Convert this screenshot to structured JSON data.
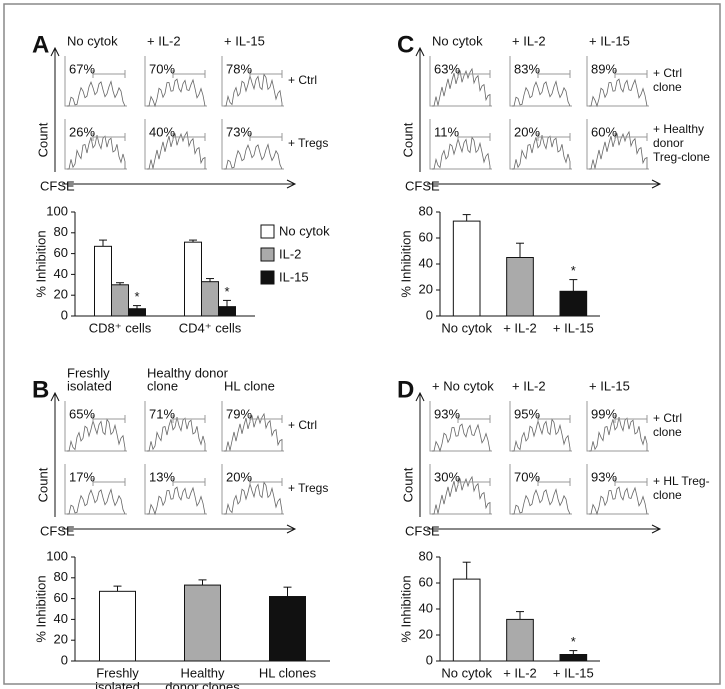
{
  "panels": [
    {
      "letter": "A",
      "columns": [
        [
          "No cytok"
        ],
        [
          "+ IL-2"
        ],
        [
          "+ IL-15"
        ]
      ],
      "rows": [
        {
          "label": [
            "+ Ctrl"
          ],
          "percents": [
            "67%",
            "70%",
            "78%"
          ]
        },
        {
          "label": [
            "+ Tregs"
          ],
          "percents": [
            "26%",
            "40%",
            "73%"
          ]
        }
      ],
      "y_label": "Count",
      "x_label": "CFSE"
    },
    {
      "letter": "B",
      "columns": [
        [
          "Freshly",
          "isolated"
        ],
        [
          "Healthy donor",
          "clone"
        ],
        [
          "HL clone"
        ]
      ],
      "rows": [
        {
          "label": [
            "+ Ctrl"
          ],
          "percents": [
            "65%",
            "71%",
            "79%"
          ]
        },
        {
          "label": [
            "+ Tregs"
          ],
          "percents": [
            "17%",
            "13%",
            "20%"
          ]
        }
      ],
      "y_label": "Count",
      "x_label": "CFSE"
    },
    {
      "letter": "C",
      "columns": [
        [
          "No cytok"
        ],
        [
          "+ IL-2"
        ],
        [
          "+ IL-15"
        ]
      ],
      "rows": [
        {
          "label": [
            "+ Ctrl",
            "clone"
          ],
          "percents": [
            "63%",
            "83%",
            "89%"
          ]
        },
        {
          "label": [
            "+ Healthy",
            "donor",
            "Treg-clone"
          ],
          "percents": [
            "11%",
            "20%",
            "60%"
          ]
        }
      ],
      "y_label": "Count",
      "x_label": "CFSE"
    },
    {
      "letter": "D",
      "columns": [
        [
          "+ No cytok"
        ],
        [
          "+ IL-2"
        ],
        [
          "+ IL-15"
        ]
      ],
      "rows": [
        {
          "label": [
            "+ Ctrl",
            "clone"
          ],
          "percents": [
            "93%",
            "95%",
            "99%"
          ]
        },
        {
          "label": [
            "+ HL Treg-",
            "clone"
          ],
          "percents": [
            "30%",
            "70%",
            "93%"
          ]
        }
      ],
      "y_label": "Count",
      "x_label": "CFSE"
    }
  ],
  "chart_data": [
    {
      "type": "grouped_bar",
      "y_label": "% Inhibition",
      "categories": [
        [
          "CD8⁺ cells"
        ],
        [
          "CD4⁺ cells"
        ]
      ],
      "series": [
        {
          "name": "No cytok",
          "color": "#ffffff",
          "values": [
            67,
            71
          ],
          "errors": [
            6,
            2
          ]
        },
        {
          "name": "IL-2",
          "color": "#aaaaaa",
          "values": [
            30,
            33
          ],
          "errors": [
            2,
            3
          ]
        },
        {
          "name": "IL-15",
          "color": "#111111",
          "values": [
            7,
            9
          ],
          "errors": [
            3,
            6
          ],
          "markers": [
            "*",
            "*"
          ]
        }
      ],
      "ylim": [
        0,
        100
      ],
      "yticks": [
        0,
        20,
        40,
        60,
        80,
        100
      ],
      "legend": "right"
    },
    {
      "type": "bar",
      "y_label": "% Inhibition",
      "categories": [
        [
          "Freshly",
          "isolated"
        ],
        [
          "Healthy",
          "donor clones"
        ],
        [
          "HL clones"
        ]
      ],
      "values": [
        67,
        73,
        62
      ],
      "errors": [
        5,
        5,
        9
      ],
      "colors": [
        "#ffffff",
        "#aaaaaa",
        "#111111"
      ],
      "ylim": [
        0,
        100
      ],
      "yticks": [
        0,
        20,
        40,
        60,
        80,
        100
      ]
    },
    {
      "type": "bar",
      "y_label": "% Inhibition",
      "categories": [
        [
          "No cytok"
        ],
        [
          "+ IL-2"
        ],
        [
          "+ IL-15"
        ]
      ],
      "values": [
        73,
        45,
        19
      ],
      "errors": [
        5,
        11,
        9
      ],
      "colors": [
        "#ffffff",
        "#aaaaaa",
        "#111111"
      ],
      "markers": [
        null,
        null,
        "*"
      ],
      "ylim": [
        0,
        80
      ],
      "yticks": [
        0,
        20,
        40,
        60,
        80
      ]
    },
    {
      "type": "bar",
      "y_label": "% Inhibition",
      "categories": [
        [
          "No cytok"
        ],
        [
          "+ IL-2"
        ],
        [
          "+ IL-15"
        ]
      ],
      "values": [
        63,
        32,
        5
      ],
      "errors": [
        13,
        6,
        3
      ],
      "colors": [
        "#ffffff",
        "#aaaaaa",
        "#111111"
      ],
      "markers": [
        null,
        null,
        "*"
      ],
      "ylim": [
        0,
        80
      ],
      "yticks": [
        0,
        20,
        40,
        60,
        80
      ]
    }
  ]
}
